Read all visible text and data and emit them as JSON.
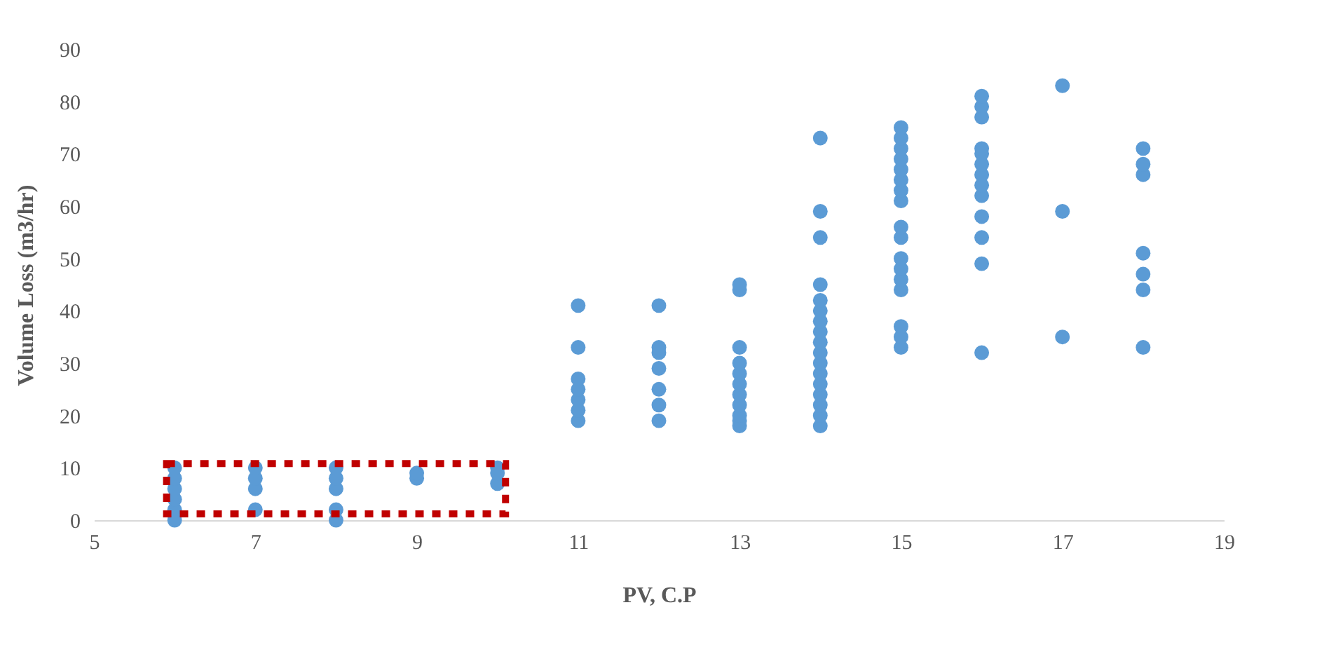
{
  "chart_data": {
    "type": "scatter",
    "xlabel": "PV, C.P",
    "ylabel": "Volume Loss (m3/hr)",
    "x": [
      6,
      6,
      6,
      6,
      6,
      6,
      7,
      7,
      7,
      7,
      8,
      8,
      8,
      8,
      8,
      9,
      9,
      10,
      10,
      10,
      11,
      11,
      11,
      11,
      11,
      11,
      11,
      12,
      12,
      12,
      12,
      12,
      12,
      12,
      13,
      13,
      13,
      13,
      13,
      13,
      13,
      13,
      13,
      13,
      13,
      14,
      14,
      14,
      14,
      14,
      14,
      14,
      14,
      14,
      14,
      14,
      14,
      14,
      14,
      14,
      14,
      14,
      15,
      15,
      15,
      15,
      15,
      15,
      15,
      15,
      15,
      15,
      15,
      15,
      15,
      15,
      15,
      15,
      15,
      16,
      16,
      16,
      16,
      16,
      16,
      16,
      16,
      16,
      16,
      16,
      16,
      16,
      17,
      17,
      17,
      18,
      18,
      18,
      18,
      18,
      18,
      18
    ],
    "series": [
      {
        "color": "#5b9bd5",
        "values": [
          0,
          2,
          4,
          6,
          8,
          10,
          2,
          6,
          8,
          10,
          0,
          2,
          6,
          8,
          10,
          8,
          9,
          7,
          9,
          10,
          19,
          21,
          23,
          25,
          27,
          33,
          41,
          19,
          22,
          25,
          29,
          32,
          33,
          41,
          18,
          19,
          20,
          22,
          24,
          26,
          28,
          30,
          33,
          44,
          45,
          18,
          20,
          22,
          24,
          26,
          28,
          30,
          32,
          34,
          36,
          38,
          40,
          42,
          45,
          54,
          59,
          73,
          33,
          35,
          37,
          44,
          46,
          48,
          50,
          54,
          56,
          61,
          63,
          65,
          67,
          69,
          71,
          73,
          75,
          32,
          49,
          54,
          58,
          62,
          64,
          66,
          68,
          70,
          71,
          77,
          79,
          81,
          35,
          59,
          83,
          33,
          44,
          47,
          51,
          66,
          68,
          71
        ]
      }
    ],
    "xlim": [
      5,
      19
    ],
    "xticks": [
      5,
      7,
      9,
      11,
      13,
      15,
      17,
      19
    ],
    "ylim": [
      0,
      90
    ],
    "yticks": [
      0,
      10,
      20,
      30,
      40,
      50,
      60,
      70,
      80,
      90
    ],
    "grid": false,
    "legend": false,
    "marker": "circle"
  }
}
